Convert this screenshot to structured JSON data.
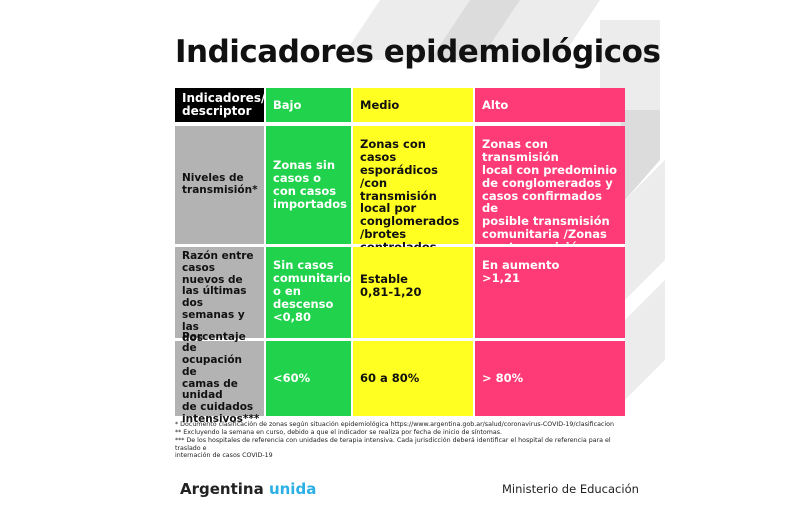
{
  "header": {
    "title": "Indicadores epidemiológicos"
  },
  "table": {
    "columns": [
      "Indicadores/\ndescriptor",
      "Bajo",
      "Medio",
      "Alto"
    ],
    "rows": [
      [
        "Niveles de\ntransmisión*",
        "Zonas sin\ncasos o\ncon casos\nimportados",
        "Zonas con casos\nesporádicos\n/con transmisión\nlocal por\nconglomerados\n/brotes\ncontrolados",
        "Zonas con transmisión\nlocal con predominio\nde conglomerados y\ncasos confirmados de\nposible transmisión\ncomunitaria /Zonas\ncon transmisión\ncomunitaria sostenida"
      ],
      [
        "Razón entre\ncasos nuevos de\nlas últimas dos\nsemanas y las\ndos semanas\nanteriores **",
        "Sin casos\ncomunitarios\no en\ndescenso\n<0,80",
        "Estable\n0,81-1,20",
        "En aumento\n>1,21"
      ],
      [
        "Porcentaje de\nocupación de\ncamas de unidad\nde cuidados\nintensivos***",
        "<60%",
        "60 a 80%",
        "> 80%"
      ]
    ]
  },
  "footnotes": [
    "* Documento clasificación de zonas según situación epidemiológica https://www.argentina.gob.ar/salud/coronavirus-COVID-19/clasificacion",
    "** Excluyendo la semana en curso, debido a que el indicador se realiza por fecha de inicio de síntomas.",
    "*** De los hospitales de referencia con unidades de terapia intensiva. Cada jurisdicción deberá identificar el hospital de referencia para el traslado e\ninternación de casos COVID-19"
  ],
  "footer": {
    "brand": "Argentina",
    "brand_accent": "unida",
    "ministry": "Ministerio de Educación"
  }
}
